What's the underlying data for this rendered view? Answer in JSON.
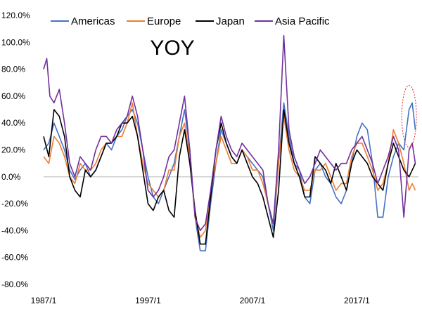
{
  "chart_data": {
    "type": "line",
    "title": "",
    "annotation_text": "YOY",
    "xlabel": "",
    "ylabel": "",
    "x_range": [
      1987.0,
      2022.9
    ],
    "ylim": [
      -80,
      120
    ],
    "y_ticks": [
      120,
      100,
      80,
      60,
      40,
      20,
      0,
      -20,
      -40,
      -60,
      -80
    ],
    "y_tick_labels": [
      "120.0%",
      "100.0%",
      "80.0%",
      "60.0%",
      "40.0%",
      "20.0%",
      "0.0%",
      "-20.0%",
      "-40.0%",
      "-60.0%",
      "-80.0%"
    ],
    "x_ticks": [
      1987,
      1997,
      2007,
      2017
    ],
    "x_tick_labels": [
      "1987/1",
      "1997/1",
      "2007/1",
      "2017/1"
    ],
    "grid": false,
    "zero_line": true,
    "legend_position": "top",
    "highlight_ellipse": {
      "x_center": 2022.0,
      "y_center": 45,
      "x_radius": 0.7,
      "y_radius": 23,
      "color": "#d62728",
      "style": "dotted"
    },
    "series": [
      {
        "name": "Americas",
        "color": "#4472c4",
        "points": [
          [
            1987.0,
            20
          ],
          [
            1987.5,
            25
          ],
          [
            1988.0,
            40
          ],
          [
            1988.5,
            30
          ],
          [
            1989.0,
            20
          ],
          [
            1989.5,
            5
          ],
          [
            1990.0,
            -2
          ],
          [
            1990.5,
            5
          ],
          [
            1991.0,
            10
          ],
          [
            1991.5,
            0
          ],
          [
            1992.0,
            5
          ],
          [
            1992.5,
            15
          ],
          [
            1993.0,
            25
          ],
          [
            1993.5,
            20
          ],
          [
            1994.0,
            30
          ],
          [
            1994.5,
            35
          ],
          [
            1995.0,
            45
          ],
          [
            1995.5,
            50
          ],
          [
            1996.0,
            40
          ],
          [
            1996.5,
            20
          ],
          [
            1997.0,
            0
          ],
          [
            1997.5,
            -15
          ],
          [
            1998.0,
            -20
          ],
          [
            1998.5,
            -10
          ],
          [
            1999.0,
            0
          ],
          [
            1999.5,
            10
          ],
          [
            2000.0,
            30
          ],
          [
            2000.5,
            50
          ],
          [
            2001.0,
            20
          ],
          [
            2001.5,
            -30
          ],
          [
            2002.0,
            -55
          ],
          [
            2002.5,
            -55
          ],
          [
            2003.0,
            -20
          ],
          [
            2003.5,
            10
          ],
          [
            2004.0,
            35
          ],
          [
            2004.5,
            25
          ],
          [
            2005.0,
            15
          ],
          [
            2005.5,
            10
          ],
          [
            2006.0,
            20
          ],
          [
            2006.5,
            15
          ],
          [
            2007.0,
            10
          ],
          [
            2007.5,
            5
          ],
          [
            2008.0,
            0
          ],
          [
            2008.5,
            -20
          ],
          [
            2009.0,
            -40
          ],
          [
            2009.5,
            10
          ],
          [
            2010.0,
            55
          ],
          [
            2010.5,
            30
          ],
          [
            2011.0,
            10
          ],
          [
            2011.5,
            5
          ],
          [
            2012.0,
            -15
          ],
          [
            2012.5,
            -20
          ],
          [
            2013.0,
            5
          ],
          [
            2013.5,
            10
          ],
          [
            2014.0,
            0
          ],
          [
            2014.5,
            -5
          ],
          [
            2015.0,
            -15
          ],
          [
            2015.5,
            -20
          ],
          [
            2016.0,
            -10
          ],
          [
            2016.5,
            10
          ],
          [
            2017.0,
            30
          ],
          [
            2017.5,
            40
          ],
          [
            2018.0,
            35
          ],
          [
            2018.5,
            10
          ],
          [
            2019.0,
            -30
          ],
          [
            2019.5,
            -30
          ],
          [
            2020.0,
            0
          ],
          [
            2020.5,
            15
          ],
          [
            2021.0,
            25
          ],
          [
            2021.5,
            20
          ],
          [
            2022.0,
            50
          ],
          [
            2022.3,
            55
          ],
          [
            2022.6,
            35
          ]
        ]
      },
      {
        "name": "Europe",
        "color": "#ed7d31",
        "points": [
          [
            1987.0,
            15
          ],
          [
            1987.5,
            10
          ],
          [
            1988.0,
            30
          ],
          [
            1988.5,
            25
          ],
          [
            1989.0,
            15
          ],
          [
            1989.5,
            0
          ],
          [
            1990.0,
            -5
          ],
          [
            1990.5,
            10
          ],
          [
            1991.0,
            5
          ],
          [
            1991.5,
            5
          ],
          [
            1992.0,
            10
          ],
          [
            1992.5,
            20
          ],
          [
            1993.0,
            25
          ],
          [
            1993.5,
            25
          ],
          [
            1994.0,
            30
          ],
          [
            1994.5,
            30
          ],
          [
            1995.0,
            40
          ],
          [
            1995.5,
            55
          ],
          [
            1996.0,
            30
          ],
          [
            1996.5,
            10
          ],
          [
            1997.0,
            -5
          ],
          [
            1997.5,
            -10
          ],
          [
            1998.0,
            -15
          ],
          [
            1998.5,
            -10
          ],
          [
            1999.0,
            5
          ],
          [
            1999.5,
            5
          ],
          [
            2000.0,
            30
          ],
          [
            2000.5,
            40
          ],
          [
            2001.0,
            15
          ],
          [
            2001.5,
            -30
          ],
          [
            2002.0,
            -45
          ],
          [
            2002.5,
            -40
          ],
          [
            2003.0,
            -10
          ],
          [
            2003.5,
            10
          ],
          [
            2004.0,
            30
          ],
          [
            2004.5,
            20
          ],
          [
            2005.0,
            10
          ],
          [
            2005.5,
            10
          ],
          [
            2006.0,
            20
          ],
          [
            2006.5,
            15
          ],
          [
            2007.0,
            5
          ],
          [
            2007.5,
            5
          ],
          [
            2008.0,
            -5
          ],
          [
            2008.5,
            -20
          ],
          [
            2009.0,
            -35
          ],
          [
            2009.5,
            10
          ],
          [
            2010.0,
            45
          ],
          [
            2010.5,
            20
          ],
          [
            2011.0,
            5
          ],
          [
            2011.5,
            0
          ],
          [
            2012.0,
            -10
          ],
          [
            2012.5,
            -10
          ],
          [
            2013.0,
            5
          ],
          [
            2013.5,
            5
          ],
          [
            2014.0,
            10
          ],
          [
            2014.5,
            0
          ],
          [
            2015.0,
            -10
          ],
          [
            2015.5,
            -5
          ],
          [
            2016.0,
            -5
          ],
          [
            2016.5,
            15
          ],
          [
            2017.0,
            25
          ],
          [
            2017.5,
            25
          ],
          [
            2018.0,
            15
          ],
          [
            2018.5,
            5
          ],
          [
            2019.0,
            -10
          ],
          [
            2019.5,
            -5
          ],
          [
            2020.0,
            10
          ],
          [
            2020.5,
            35
          ],
          [
            2021.0,
            25
          ],
          [
            2021.5,
            10
          ],
          [
            2022.0,
            -10
          ],
          [
            2022.3,
            -5
          ],
          [
            2022.6,
            -10
          ]
        ]
      },
      {
        "name": "Japan",
        "color": "#000000",
        "points": [
          [
            1987.0,
            30
          ],
          [
            1987.5,
            15
          ],
          [
            1988.0,
            50
          ],
          [
            1988.5,
            45
          ],
          [
            1989.0,
            30
          ],
          [
            1989.5,
            0
          ],
          [
            1990.0,
            -10
          ],
          [
            1990.5,
            -15
          ],
          [
            1991.0,
            5
          ],
          [
            1991.5,
            0
          ],
          [
            1992.0,
            5
          ],
          [
            1992.5,
            15
          ],
          [
            1993.0,
            25
          ],
          [
            1993.5,
            25
          ],
          [
            1994.0,
            30
          ],
          [
            1994.5,
            40
          ],
          [
            1995.0,
            40
          ],
          [
            1995.5,
            45
          ],
          [
            1996.0,
            30
          ],
          [
            1996.5,
            5
          ],
          [
            1997.0,
            -20
          ],
          [
            1997.5,
            -25
          ],
          [
            1998.0,
            -15
          ],
          [
            1998.5,
            -10
          ],
          [
            1999.0,
            -25
          ],
          [
            1999.5,
            -30
          ],
          [
            2000.0,
            15
          ],
          [
            2000.5,
            35
          ],
          [
            2001.0,
            10
          ],
          [
            2001.5,
            -25
          ],
          [
            2002.0,
            -50
          ],
          [
            2002.5,
            -50
          ],
          [
            2003.0,
            -15
          ],
          [
            2003.5,
            20
          ],
          [
            2004.0,
            40
          ],
          [
            2004.5,
            25
          ],
          [
            2005.0,
            15
          ],
          [
            2005.5,
            10
          ],
          [
            2006.0,
            20
          ],
          [
            2006.5,
            10
          ],
          [
            2007.0,
            0
          ],
          [
            2007.5,
            -5
          ],
          [
            2008.0,
            -15
          ],
          [
            2008.5,
            -30
          ],
          [
            2009.0,
            -45
          ],
          [
            2009.5,
            -10
          ],
          [
            2010.0,
            50
          ],
          [
            2010.5,
            25
          ],
          [
            2011.0,
            10
          ],
          [
            2011.5,
            0
          ],
          [
            2012.0,
            -15
          ],
          [
            2012.5,
            -15
          ],
          [
            2013.0,
            15
          ],
          [
            2013.5,
            10
          ],
          [
            2014.0,
            5
          ],
          [
            2014.5,
            -5
          ],
          [
            2015.0,
            10
          ],
          [
            2015.5,
            0
          ],
          [
            2016.0,
            -10
          ],
          [
            2016.5,
            10
          ],
          [
            2017.0,
            20
          ],
          [
            2017.5,
            15
          ],
          [
            2018.0,
            10
          ],
          [
            2018.5,
            0
          ],
          [
            2019.0,
            -5
          ],
          [
            2019.5,
            -10
          ],
          [
            2020.0,
            10
          ],
          [
            2020.5,
            25
          ],
          [
            2021.0,
            15
          ],
          [
            2021.5,
            5
          ],
          [
            2022.0,
            0
          ],
          [
            2022.3,
            5
          ],
          [
            2022.6,
            10
          ]
        ]
      },
      {
        "name": "Asia Pacific",
        "color": "#7030a0",
        "points": [
          [
            1987.0,
            80
          ],
          [
            1987.3,
            88
          ],
          [
            1987.6,
            60
          ],
          [
            1988.0,
            55
          ],
          [
            1988.5,
            65
          ],
          [
            1989.0,
            40
          ],
          [
            1989.5,
            10
          ],
          [
            1990.0,
            0
          ],
          [
            1990.5,
            15
          ],
          [
            1991.0,
            10
          ],
          [
            1991.5,
            5
          ],
          [
            1992.0,
            20
          ],
          [
            1992.5,
            30
          ],
          [
            1993.0,
            30
          ],
          [
            1993.5,
            25
          ],
          [
            1994.0,
            35
          ],
          [
            1994.5,
            40
          ],
          [
            1995.0,
            45
          ],
          [
            1995.5,
            60
          ],
          [
            1996.0,
            45
          ],
          [
            1996.5,
            20
          ],
          [
            1997.0,
            -10
          ],
          [
            1997.5,
            -15
          ],
          [
            1998.0,
            -10
          ],
          [
            1998.5,
            0
          ],
          [
            1999.0,
            15
          ],
          [
            1999.5,
            20
          ],
          [
            2000.0,
            40
          ],
          [
            2000.5,
            60
          ],
          [
            2001.0,
            20
          ],
          [
            2001.5,
            -30
          ],
          [
            2002.0,
            -40
          ],
          [
            2002.5,
            -35
          ],
          [
            2003.0,
            -10
          ],
          [
            2003.5,
            20
          ],
          [
            2004.0,
            45
          ],
          [
            2004.5,
            30
          ],
          [
            2005.0,
            20
          ],
          [
            2005.5,
            15
          ],
          [
            2006.0,
            25
          ],
          [
            2006.5,
            20
          ],
          [
            2007.0,
            15
          ],
          [
            2007.5,
            10
          ],
          [
            2008.0,
            5
          ],
          [
            2008.5,
            -20
          ],
          [
            2009.0,
            -35
          ],
          [
            2009.5,
            20
          ],
          [
            2010.0,
            105
          ],
          [
            2010.5,
            35
          ],
          [
            2011.0,
            15
          ],
          [
            2011.5,
            5
          ],
          [
            2012.0,
            -5
          ],
          [
            2012.5,
            0
          ],
          [
            2013.0,
            10
          ],
          [
            2013.5,
            20
          ],
          [
            2014.0,
            15
          ],
          [
            2014.5,
            10
          ],
          [
            2015.0,
            5
          ],
          [
            2015.5,
            10
          ],
          [
            2016.0,
            10
          ],
          [
            2016.5,
            20
          ],
          [
            2017.0,
            25
          ],
          [
            2017.5,
            30
          ],
          [
            2018.0,
            20
          ],
          [
            2018.5,
            10
          ],
          [
            2019.0,
            -5
          ],
          [
            2019.5,
            5
          ],
          [
            2020.0,
            15
          ],
          [
            2020.5,
            30
          ],
          [
            2021.0,
            20
          ],
          [
            2021.5,
            -30
          ],
          [
            2022.0,
            20
          ],
          [
            2022.3,
            25
          ],
          [
            2022.6,
            10
          ]
        ]
      }
    ]
  }
}
